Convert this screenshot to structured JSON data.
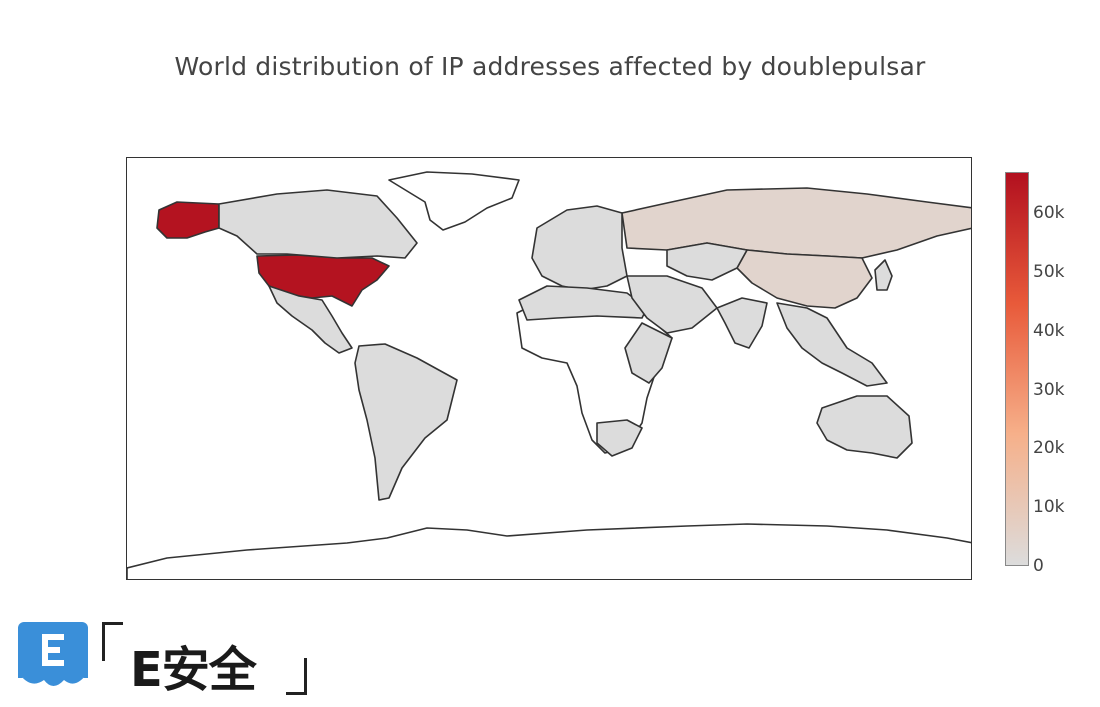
{
  "title": "World distribution of IP addresses affected by doublepulsar",
  "chart_data": {
    "type": "choropleth",
    "projection": "equirectangular",
    "colorscale": [
      "#dcdcdc",
      "#f6b08a",
      "#e85a3a",
      "#b2101f"
    ],
    "no_data_color": "#ffffff",
    "zmin": 0,
    "zmax": 67000,
    "colorbar_ticks": [
      {
        "value": 0,
        "label": "0"
      },
      {
        "value": 10000,
        "label": "10k"
      },
      {
        "value": 20000,
        "label": "20k"
      },
      {
        "value": 30000,
        "label": "30k"
      },
      {
        "value": 40000,
        "label": "40k"
      },
      {
        "value": 50000,
        "label": "50k"
      },
      {
        "value": 60000,
        "label": "60k"
      }
    ],
    "regions": [
      {
        "name": "United States",
        "value": 66000
      },
      {
        "name": "Alaska",
        "value": 66000
      },
      {
        "name": "Russia",
        "value": 4000
      },
      {
        "name": "China",
        "value": 4000
      },
      {
        "name": "Canada",
        "value": 0
      },
      {
        "name": "Mexico and Central America",
        "value": 0
      },
      {
        "name": "South America",
        "value": 0
      },
      {
        "name": "Europe",
        "value": 0
      },
      {
        "name": "North Africa",
        "value": 0
      },
      {
        "name": "Middle East",
        "value": 0
      },
      {
        "name": "Central Asia",
        "value": 0
      },
      {
        "name": "India",
        "value": 0
      },
      {
        "name": "Southeast Asia",
        "value": 0
      },
      {
        "name": "Japan",
        "value": 0
      },
      {
        "name": "Australia",
        "value": 0
      },
      {
        "name": "East Africa",
        "value": 0
      },
      {
        "name": "Southern Africa",
        "value": 0
      }
    ]
  },
  "watermark": {
    "badge_letter": "E",
    "text": "E安全"
  }
}
